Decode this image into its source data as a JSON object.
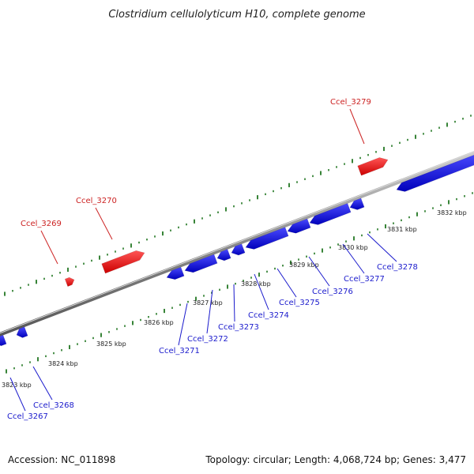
{
  "title": "Clostridium cellulolyticum H10, complete genome",
  "footer": {
    "accession": "Accession: NC_011898",
    "summary": "Topology: circular; Length: 4,068,724 bp; Genes: 3,477"
  },
  "colors": {
    "forward_gene": "#ee1111",
    "reverse_gene": "#1111dd",
    "backbone": "#888888",
    "tick": "#227722",
    "forward_label": "#cc2222",
    "reverse_label": "#1a1acc"
  },
  "ticks": [
    {
      "label": "3823 kbp"
    },
    {
      "label": "3824 kbp"
    },
    {
      "label": "3825 kbp"
    },
    {
      "label": "3826 kbp"
    },
    {
      "label": "3827 kbp"
    },
    {
      "label": "3828 kbp"
    },
    {
      "label": "3829 kbp"
    },
    {
      "label": "3830 kbp"
    },
    {
      "label": "3831 kbp"
    },
    {
      "label": "3832 kbp"
    }
  ],
  "forward_genes": [
    {
      "label": "Ccel_3269"
    },
    {
      "label": "Ccel_3270"
    },
    {
      "label": "Ccel_3279"
    }
  ],
  "reverse_genes": [
    {
      "label": "Ccel_3267"
    },
    {
      "label": "Ccel_3268"
    },
    {
      "label": "Ccel_3271"
    },
    {
      "label": "Ccel_3272"
    },
    {
      "label": "Ccel_3273"
    },
    {
      "label": "Ccel_3274"
    },
    {
      "label": "Ccel_3275"
    },
    {
      "label": "Ccel_3276"
    },
    {
      "label": "Ccel_3277"
    },
    {
      "label": "Ccel_3278"
    }
  ]
}
